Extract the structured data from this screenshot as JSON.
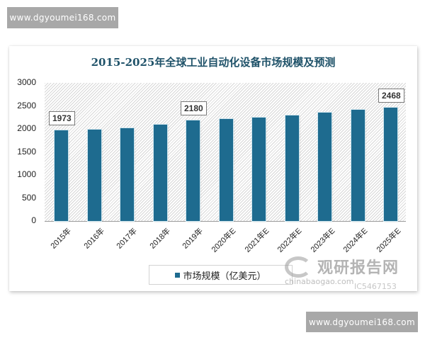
{
  "watermarks": {
    "top": "www.dgyoumei168.com",
    "bottom": "www.dgyoumei168.com"
  },
  "brand_overlay": {
    "name": "观研报告网",
    "url": "chinabaogao.com",
    "id": "IC5467153"
  },
  "chart_data": {
    "type": "bar",
    "title": "2015-2025年全球工业自动化设备市场规模及预测",
    "xlabel": "",
    "ylabel": "",
    "ylim": [
      0,
      3000
    ],
    "yticks": [
      0,
      500,
      1000,
      1500,
      2000,
      2500,
      3000
    ],
    "grid": false,
    "legend_position": "bottom",
    "categories": [
      "2015年",
      "2016年",
      "2017年",
      "2018年",
      "2019年",
      "2020年E",
      "2021年E",
      "2022年E",
      "2023年E",
      "2024年E",
      "2025年E"
    ],
    "series": [
      {
        "name": "市场规模（亿美元）",
        "color": "#1e6b8f",
        "values": [
          1973,
          1990,
          2020,
          2090,
          2180,
          2210,
          2250,
          2290,
          2350,
          2410,
          2468
        ]
      }
    ],
    "annotations": [
      {
        "category": "2015年",
        "label": "1973"
      },
      {
        "category": "2019年",
        "label": "2180"
      },
      {
        "category": "2025年E",
        "label": "2468"
      }
    ]
  }
}
